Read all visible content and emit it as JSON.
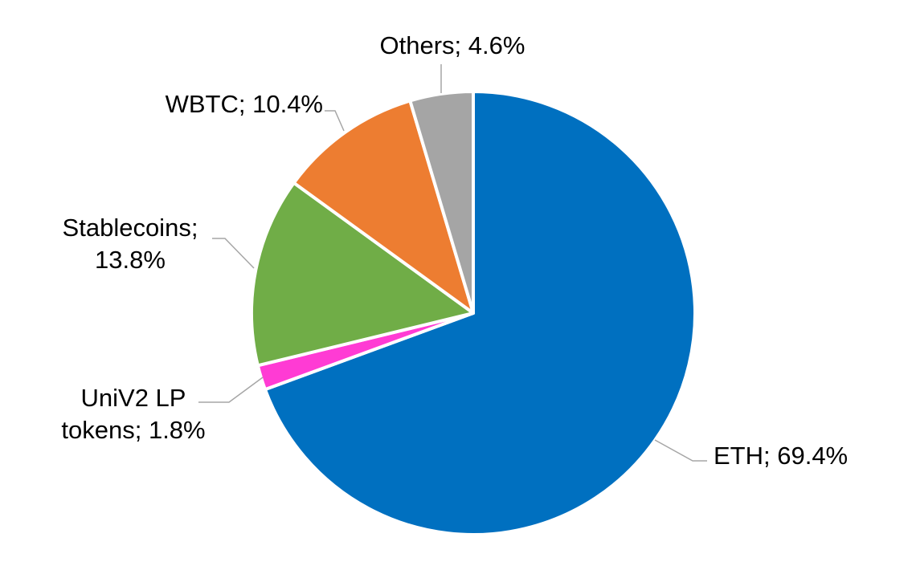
{
  "chart_data": {
    "type": "pie",
    "title": "",
    "slices": [
      {
        "name": "ETH",
        "value": 69.4,
        "color": "#0070C0",
        "label_lines": [
          "ETH; 69.4%"
        ]
      },
      {
        "name": "UniV2 LP tokens",
        "value": 1.8,
        "color": "#FF3BD4",
        "label_lines": [
          "UniV2 LP",
          "tokens; 1.8%"
        ]
      },
      {
        "name": "Stablecoins",
        "value": 13.8,
        "color": "#70AD47",
        "label_lines": [
          "Stablecoins;",
          "13.8%"
        ]
      },
      {
        "name": "WBTC",
        "value": 10.4,
        "color": "#ED7D31",
        "label_lines": [
          "WBTC; 10.4%"
        ]
      },
      {
        "name": "Others",
        "value": 4.6,
        "color": "#A5A5A5",
        "label_lines": [
          "Others; 4.6%"
        ]
      }
    ],
    "legend": "none",
    "data_labels": "outside with leader lines"
  }
}
